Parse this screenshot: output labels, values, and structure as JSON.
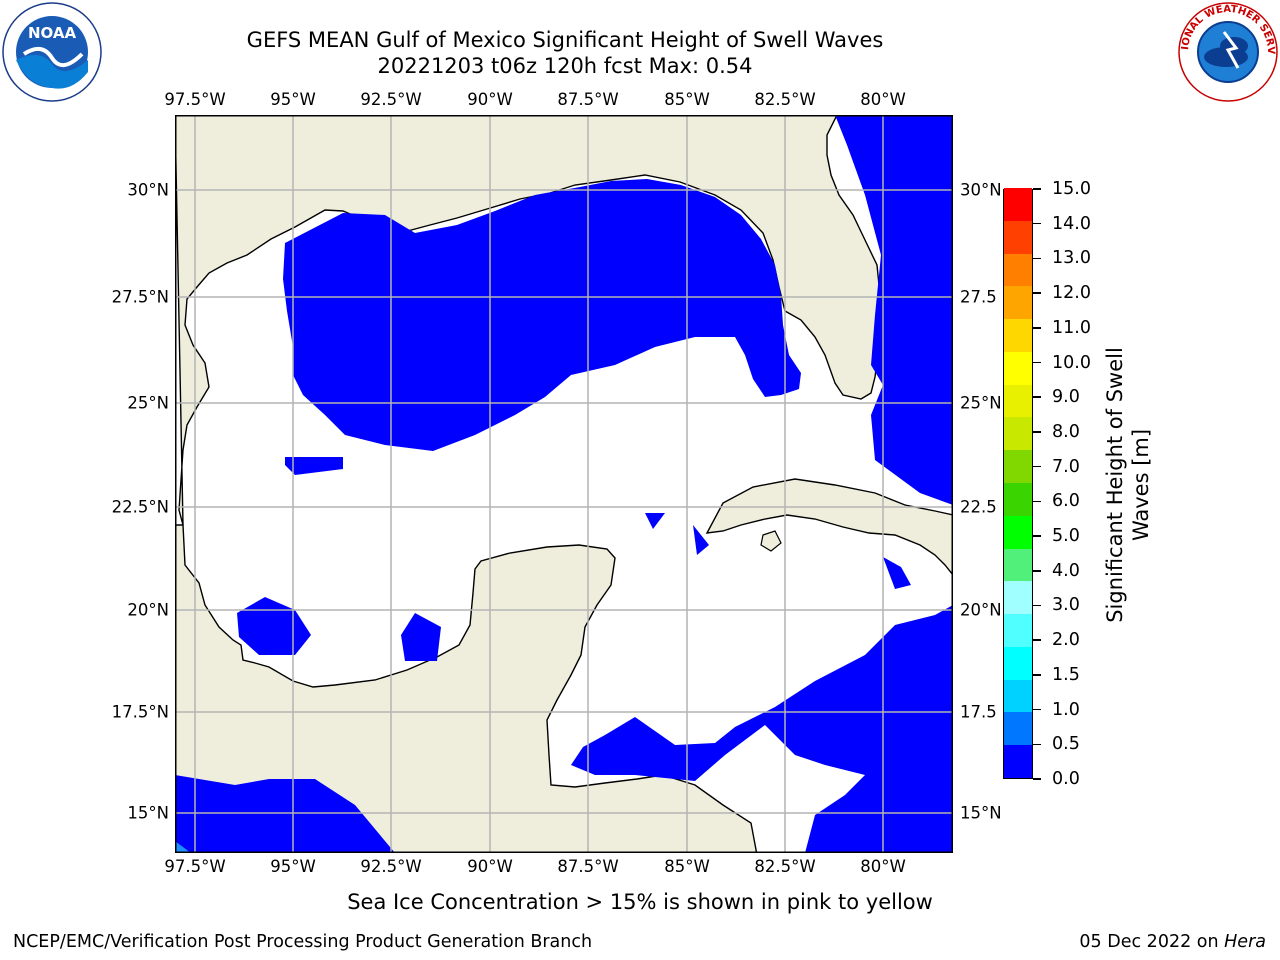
{
  "title_line1": "GEFS MEAN Gulf of Mexico Significant Height of Swell Waves",
  "title_line2": "20221203 t06z 120h fcst   Max: 0.54",
  "lon_labels": [
    "97.5°W",
    "95°W",
    "92.5°W",
    "90°W",
    "87.5°W",
    "85°W",
    "82.5°W",
    "80°W"
  ],
  "lat_labels": [
    "30°N",
    "27.5°N",
    "25°N",
    "22.5°N",
    "20°N",
    "17.5°N",
    "15°N"
  ],
  "lat_labels_right": [
    "30°N",
    "27.5",
    "25°N",
    "22.5",
    "20°N",
    "17.5",
    "15°N"
  ],
  "colorbar": {
    "label_line1": "Significant Height of Swell",
    "label_line2": "Waves [m]",
    "tick_labels": [
      "0.0",
      "0.5",
      "1.0",
      "1.5",
      "2.0",
      "3.0",
      "4.0",
      "5.0",
      "6.0",
      "7.0",
      "8.0",
      "9.0",
      "10.0",
      "11.0",
      "12.0",
      "13.0",
      "14.0",
      "15.0"
    ],
    "colors": [
      "#0000ff",
      "#0077ff",
      "#00d2ff",
      "#00ffff",
      "#50ffff",
      "#a0ffff",
      "#50f07a",
      "#00ff00",
      "#3ad400",
      "#80d800",
      "#c8e800",
      "#e8f000",
      "#ffff00",
      "#ffd700",
      "#ffa500",
      "#ff8000",
      "#ff4000",
      "#ff0000"
    ]
  },
  "map_colors": {
    "land": "#efeedc",
    "swell_low": "#0000ff",
    "swell_min": "#1e90ff",
    "ocean_none": "#ffffff",
    "grid": "#b4b4b4"
  },
  "ice_note": "Sea Ice Concentration > 15% is shown in pink to yellow",
  "footer_left": "NCEP/EMC/Verification Post Processing Product Generation Branch",
  "footer_date": "05 Dec 2022 on ",
  "footer_machine": "Hera",
  "logos": {
    "left": "NOAA",
    "right": "NATIONAL WEATHER SERVICE"
  }
}
